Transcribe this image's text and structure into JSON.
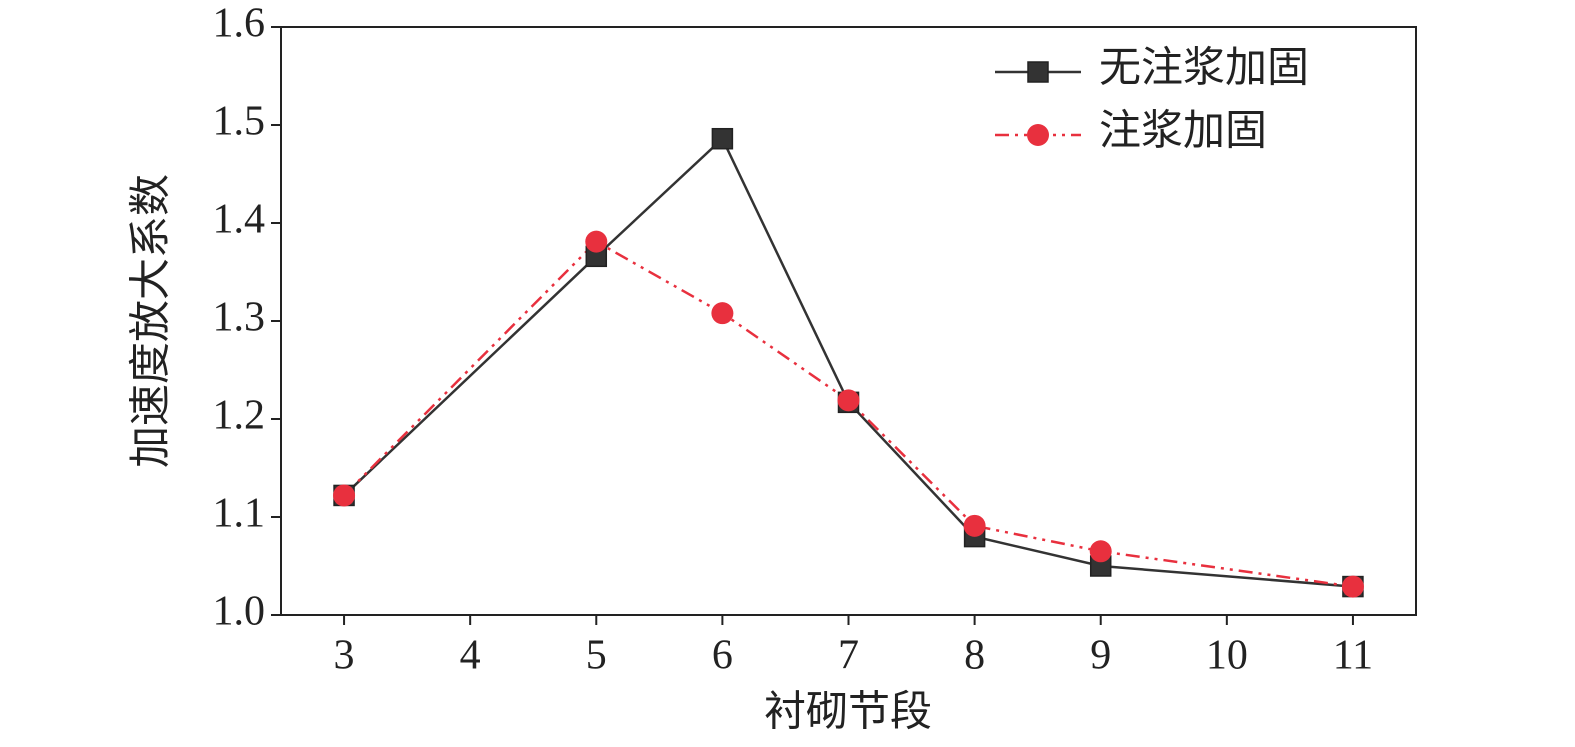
{
  "chart_data": {
    "type": "line",
    "x_label": "衬砌节段",
    "y_label": "加速度放大系数",
    "x": [
      3,
      5,
      6,
      7,
      8,
      9,
      11
    ],
    "series": [
      {
        "name": "无注浆加固",
        "color": "#333333",
        "marker": "square",
        "linestyle": "solid",
        "values": [
          1.122,
          1.366,
          1.486,
          1.217,
          1.08,
          1.05,
          1.029
        ]
      },
      {
        "name": "注浆加固",
        "color": "#e8303e",
        "marker": "circle",
        "linestyle": "dashdotdot",
        "values": [
          1.122,
          1.381,
          1.308,
          1.219,
          1.091,
          1.065,
          1.029
        ]
      }
    ],
    "xlim": [
      2.5,
      11.5
    ],
    "xticks": [
      3,
      4,
      5,
      6,
      7,
      8,
      9,
      10,
      11
    ],
    "ylim": [
      1.0,
      1.6
    ],
    "yticks": [
      {
        "value": 1.0,
        "label": "1.0"
      },
      1.1,
      1.2,
      1.3,
      1.4,
      1.5,
      1.6
    ],
    "legend": "upper right",
    "grid": false
  }
}
